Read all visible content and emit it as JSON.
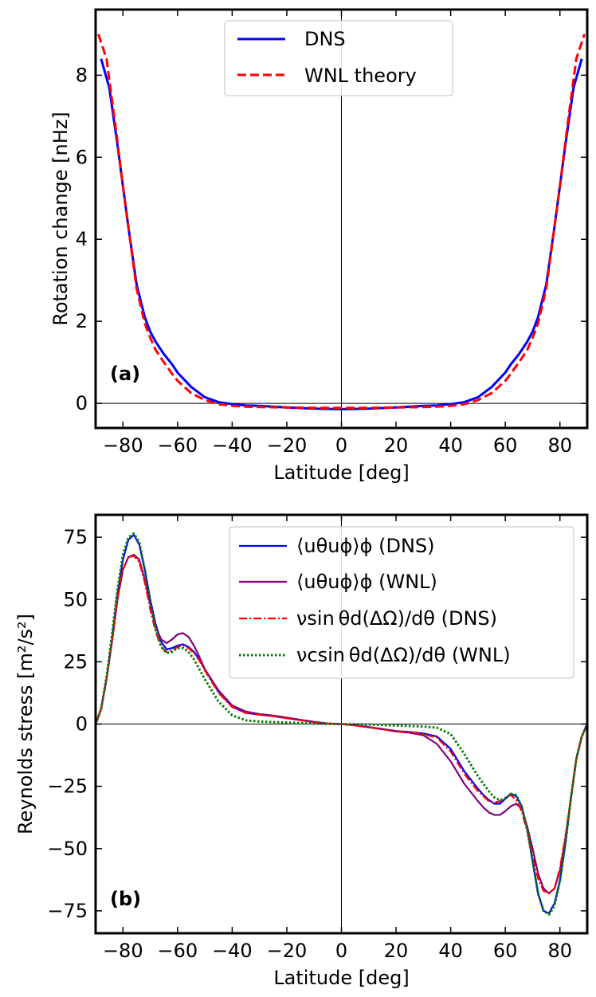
{
  "colors": {
    "dns": "#0000ff",
    "wnl_theory": "#ff0000",
    "wnl": "#800080",
    "visc_dns": "#ff0000",
    "visc_wnl": "#008000"
  },
  "chart_data": [
    {
      "type": "line",
      "panel_label": "(a)",
      "xlabel": "Latitude [deg]",
      "ylabel": "Rotation change [nHz]",
      "xlim": [
        -90,
        90
      ],
      "ylim": [
        -0.6,
        9.6
      ],
      "xticks": [
        -80,
        -60,
        -40,
        -20,
        0,
        20,
        40,
        60,
        80
      ],
      "xtick_labels": [
        "−80",
        "−60",
        "−40",
        "−20",
        "0",
        "20",
        "40",
        "60",
        "80"
      ],
      "yticks": [
        0,
        2,
        4,
        6,
        8
      ],
      "ytick_labels": [
        "0",
        "2",
        "4",
        "6",
        "8"
      ],
      "grid": false,
      "reference_lines": {
        "x": 0,
        "y": 0
      },
      "legend": {
        "placement": "top-center"
      },
      "series": [
        {
          "name": "DNS",
          "style": "solid",
          "color": "#0000ff",
          "x": [
            -88,
            -85,
            -82,
            -80,
            -78,
            -75,
            -72,
            -70,
            -68,
            -65,
            -62,
            -60,
            -55,
            -50,
            -45,
            -40,
            -35,
            -30,
            -20,
            -10,
            0,
            10,
            20,
            30,
            35,
            40,
            45,
            50,
            55,
            60,
            62,
            65,
            68,
            70,
            72,
            75,
            78,
            80,
            82,
            85,
            88
          ],
          "y": [
            8.4,
            7.7,
            6.3,
            5.3,
            4.3,
            2.9,
            2.1,
            1.75,
            1.5,
            1.2,
            0.95,
            0.75,
            0.4,
            0.15,
            0.03,
            -0.02,
            -0.05,
            -0.06,
            -0.1,
            -0.13,
            -0.14,
            -0.13,
            -0.1,
            -0.06,
            -0.05,
            -0.02,
            0.03,
            0.15,
            0.4,
            0.75,
            0.95,
            1.2,
            1.5,
            1.75,
            2.1,
            2.9,
            4.3,
            5.3,
            6.3,
            7.7,
            8.4
          ]
        },
        {
          "name": "WNL theory",
          "style": "dashed",
          "color": "#ff0000",
          "x": [
            -89,
            -86,
            -83,
            -80,
            -78,
            -75,
            -72,
            -70,
            -68,
            -65,
            -62,
            -60,
            -55,
            -50,
            -45,
            -40,
            -35,
            -30,
            -20,
            -10,
            0,
            10,
            20,
            30,
            35,
            40,
            45,
            50,
            55,
            60,
            62,
            65,
            68,
            70,
            72,
            75,
            78,
            80,
            83,
            86,
            89
          ],
          "y": [
            9.0,
            8.4,
            6.9,
            5.3,
            4.3,
            2.8,
            1.95,
            1.6,
            1.3,
            1.0,
            0.72,
            0.55,
            0.25,
            0.08,
            -0.02,
            -0.06,
            -0.08,
            -0.09,
            -0.1,
            -0.11,
            -0.11,
            -0.11,
            -0.1,
            -0.09,
            -0.08,
            -0.06,
            -0.02,
            0.08,
            0.25,
            0.55,
            0.72,
            1.0,
            1.3,
            1.6,
            1.95,
            2.8,
            4.3,
            5.3,
            6.9,
            8.4,
            9.0
          ]
        }
      ]
    },
    {
      "type": "line",
      "panel_label": "(b)",
      "xlabel": "Latitude [deg]",
      "ylabel": "Reynolds stress [m²/s²]",
      "xlim": [
        -90,
        90
      ],
      "ylim": [
        -84,
        84
      ],
      "xticks": [
        -80,
        -60,
        -40,
        -20,
        0,
        20,
        40,
        60,
        80
      ],
      "xtick_labels": [
        "−80",
        "−60",
        "−40",
        "−20",
        "0",
        "20",
        "40",
        "60",
        "80"
      ],
      "yticks": [
        -75,
        -50,
        -25,
        0,
        25,
        50,
        75
      ],
      "ytick_labels": [
        "−75",
        "−50",
        "−25",
        "0",
        "25",
        "50",
        "75"
      ],
      "grid": false,
      "reference_lines": {
        "x": 0,
        "y": 0
      },
      "legend": {
        "placement": "top-right"
      },
      "series": [
        {
          "name": "⟨uθuϕ⟩ϕ (DNS)",
          "style": "solid",
          "color": "#0000ff",
          "x": [
            -90,
            -88,
            -86,
            -84,
            -82,
            -80,
            -78,
            -76,
            -74,
            -72,
            -70,
            -68,
            -66,
            -64,
            -62,
            -60,
            -58,
            -56,
            -54,
            -52,
            -50,
            -45,
            -40,
            -35,
            -30,
            -25,
            -20,
            -15,
            -10,
            -5,
            0,
            5,
            10,
            15,
            20,
            25,
            30,
            35,
            40,
            45,
            50,
            52,
            54,
            56,
            58,
            60,
            62,
            64,
            66,
            68,
            70,
            72,
            74,
            76,
            78,
            80,
            82,
            84,
            86,
            88,
            90
          ],
          "y": [
            0,
            6,
            18,
            34,
            52,
            66,
            74,
            76,
            72,
            62,
            50,
            40,
            33,
            30,
            30.5,
            31.5,
            32,
            31,
            29,
            26,
            22,
            13,
            7,
            4.5,
            3.8,
            3.2,
            2.4,
            1.6,
            0.8,
            0.2,
            0,
            -0.5,
            -1.2,
            -2,
            -2.8,
            -3.2,
            -3.8,
            -5,
            -10,
            -19,
            -26,
            -28.5,
            -30.5,
            -32,
            -32,
            -30,
            -28,
            -29,
            -33,
            -42,
            -55,
            -68,
            -75,
            -76,
            -72,
            -63,
            -48,
            -30,
            -14,
            -5,
            0
          ]
        },
        {
          "name": "⟨uθuϕ⟩ϕ (WNL)",
          "style": "solid",
          "color": "#800080",
          "x": [
            -90,
            -88,
            -86,
            -84,
            -82,
            -80,
            -78,
            -76,
            -74,
            -72,
            -70,
            -68,
            -66,
            -64,
            -62,
            -60,
            -58,
            -56,
            -54,
            -52,
            -50,
            -45,
            -40,
            -35,
            -30,
            -25,
            -20,
            -15,
            -10,
            -5,
            0,
            5,
            10,
            15,
            20,
            25,
            30,
            35,
            40,
            45,
            50,
            52,
            54,
            56,
            58,
            60,
            62,
            64,
            66,
            68,
            70,
            72,
            74,
            76,
            78,
            80,
            82,
            84,
            86,
            88,
            90
          ],
          "y": [
            0,
            6,
            18,
            33,
            50,
            62,
            67,
            68,
            66,
            58,
            48,
            39,
            34,
            32.5,
            34,
            36,
            36.5,
            35,
            31.5,
            27,
            22,
            13.5,
            7.5,
            5,
            4,
            3.4,
            2.6,
            1.7,
            0.9,
            0.2,
            0,
            -0.5,
            -1.3,
            -2.1,
            -3,
            -3.5,
            -4.5,
            -8,
            -15,
            -24,
            -31,
            -33.5,
            -35.5,
            -36.5,
            -36.5,
            -35,
            -33,
            -32,
            -34,
            -41,
            -50,
            -60,
            -66,
            -68,
            -66,
            -59,
            -46,
            -30,
            -14,
            -5,
            0
          ]
        },
        {
          "name": "νsin θd(ΔΩ)/dθ (DNS)",
          "style": "dashdot",
          "color": "#ff0000",
          "x": [
            -90,
            -88,
            -86,
            -84,
            -82,
            -80,
            -78,
            -76,
            -74,
            -72,
            -70,
            -68,
            -66,
            -64,
            -62,
            -60,
            -58,
            -56,
            -54,
            -52,
            -50,
            -45,
            -40,
            -35,
            -30,
            -25,
            -20,
            -15,
            -10,
            -5,
            0,
            5,
            10,
            15,
            20,
            25,
            30,
            35,
            40,
            45,
            50,
            52,
            54,
            56,
            58,
            60,
            62,
            64,
            66,
            68,
            70,
            72,
            74,
            76,
            78,
            80,
            82,
            84,
            86,
            88,
            90
          ],
          "y": [
            0,
            6,
            18,
            33,
            50,
            62,
            67,
            67.5,
            65,
            57,
            46,
            37,
            31,
            29,
            29.5,
            31,
            31.5,
            30.5,
            28.5,
            25.5,
            21.5,
            12.5,
            6.8,
            4.4,
            3.7,
            3.1,
            2.3,
            1.5,
            0.8,
            0.2,
            0,
            -0.6,
            -1.3,
            -2.1,
            -2.9,
            -3.3,
            -4,
            -5.5,
            -11,
            -20,
            -27,
            -29,
            -31,
            -31.5,
            -31,
            -29.5,
            -28.5,
            -30.5,
            -35,
            -43,
            -53,
            -62,
            -67,
            -68,
            -66,
            -58,
            -45,
            -30,
            -14,
            -5,
            0
          ]
        },
        {
          "name": "νcsin θd(ΔΩ)/dθ (WNL)",
          "style": "dotted",
          "color": "#008000",
          "x": [
            -90,
            -88,
            -86,
            -84,
            -82,
            -80,
            -78,
            -76,
            -74,
            -72,
            -70,
            -68,
            -66,
            -64,
            -62,
            -60,
            -58,
            -56,
            -54,
            -52,
            -50,
            -45,
            -40,
            -35,
            -30,
            -25,
            -20,
            -15,
            -10,
            -5,
            0,
            5,
            10,
            15,
            20,
            25,
            30,
            35,
            40,
            45,
            50,
            52,
            54,
            56,
            58,
            60,
            62,
            64,
            66,
            68,
            70,
            72,
            74,
            76,
            78,
            80,
            82,
            84,
            86,
            88,
            90
          ],
          "y": [
            0,
            6,
            19,
            36,
            54,
            68,
            75,
            76.5,
            73,
            62,
            49,
            38,
            31,
            28.5,
            29,
            30.5,
            30.5,
            29,
            26,
            22,
            18,
            9,
            3.5,
            1.5,
            1.0,
            0.8,
            0.6,
            0.4,
            0.2,
            0.05,
            0,
            -0.05,
            -0.2,
            -0.4,
            -0.6,
            -0.8,
            -1.0,
            -1.5,
            -4,
            -12,
            -21,
            -24,
            -27,
            -29.5,
            -30.5,
            -30,
            -28,
            -28.5,
            -33,
            -42,
            -55,
            -68,
            -75,
            -76.5,
            -73,
            -63,
            -48,
            -30,
            -14,
            -5,
            0
          ]
        }
      ]
    }
  ]
}
